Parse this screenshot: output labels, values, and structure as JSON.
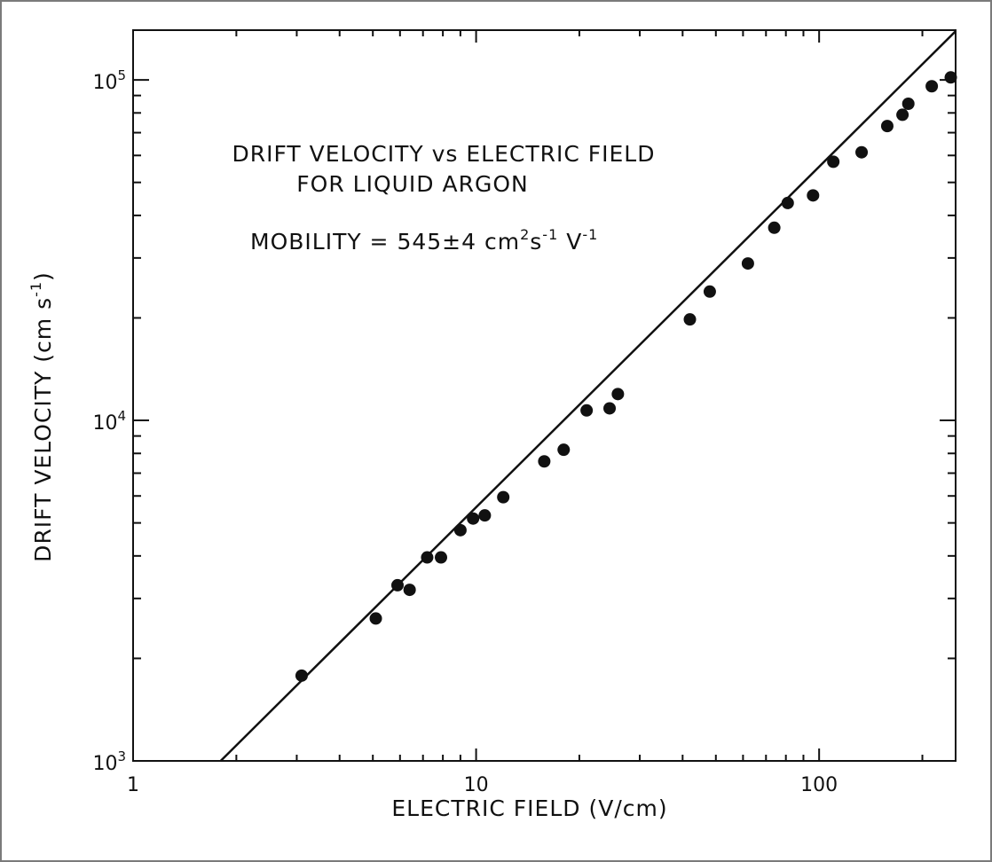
{
  "chart_data": {
    "type": "scatter",
    "title": "DRIFT VELOCITY vs ELECTRIC FIELD",
    "subtitle": "FOR LIQUID ARGON",
    "annotation": {
      "prefix": "MOBILITY = 545±4 cm",
      "sup1": "2",
      "mid": "s",
      "sup2": "-1",
      "mid2": " V",
      "sup3": "-1"
    },
    "xlabel": "ELECTRIC FIELD (V/cm)",
    "ylabel": {
      "main": "DRIFT VELOCITY (cm s",
      "sup": "-1",
      "close": ")"
    },
    "x_scale": "log",
    "y_scale": "log",
    "xlim": [
      1,
      250
    ],
    "ylim": [
      1000,
      140000
    ],
    "x_ticks": [
      {
        "value": 1,
        "label": "1"
      },
      {
        "value": 10,
        "label": "10"
      },
      {
        "value": 100,
        "label": "100"
      }
    ],
    "y_ticks": [
      {
        "value": 1000,
        "base": "10",
        "exp": "3"
      },
      {
        "value": 10000,
        "base": "10",
        "exp": "4"
      },
      {
        "value": 100000,
        "base": "10",
        "exp": "5"
      }
    ],
    "grid": false,
    "series": [
      {
        "points": [
          [
            3.1,
            1780
          ],
          [
            5.1,
            2620
          ],
          [
            5.9,
            3280
          ],
          [
            6.4,
            3180
          ],
          [
            7.2,
            3960
          ],
          [
            7.9,
            3960
          ],
          [
            9.0,
            4760
          ],
          [
            9.8,
            5150
          ],
          [
            10.6,
            5260
          ],
          [
            12.0,
            5950
          ],
          [
            15.8,
            7580
          ],
          [
            18.0,
            8200
          ],
          [
            21.0,
            10700
          ],
          [
            24.5,
            10850
          ],
          [
            25.9,
            11950
          ],
          [
            42.0,
            19800
          ],
          [
            48.0,
            23900
          ],
          [
            62.0,
            28900
          ],
          [
            74.0,
            36800
          ],
          [
            81.0,
            43500
          ],
          [
            96.0,
            45800
          ],
          [
            110.0,
            57500
          ],
          [
            133.0,
            61300
          ],
          [
            158.0,
            73200
          ],
          [
            175.0,
            79000
          ],
          [
            182.0,
            85100
          ],
          [
            213.0,
            95800
          ],
          [
            242.0,
            101700
          ]
        ]
      },
      {
        "type": "line",
        "fit": [
          [
            1.8,
            1000
          ],
          [
            250,
            139000
          ]
        ]
      }
    ]
  }
}
